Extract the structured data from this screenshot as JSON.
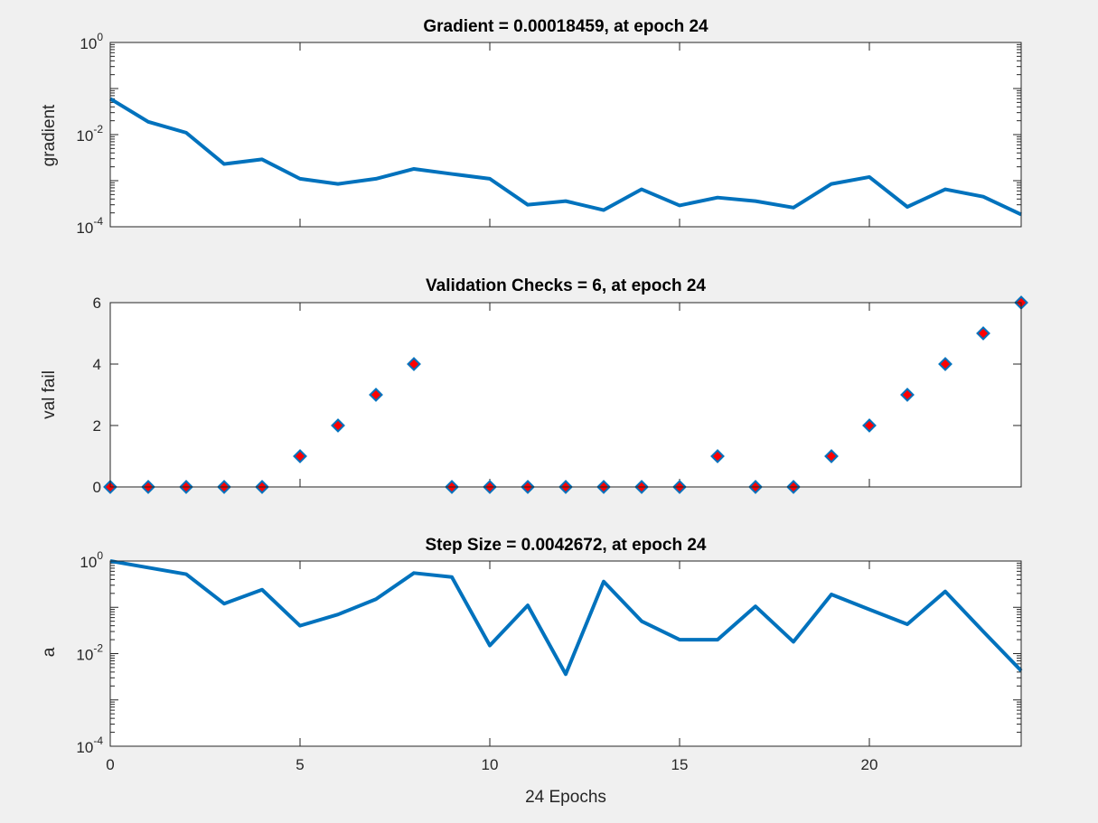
{
  "chart_data": [
    {
      "type": "line",
      "title": "Gradient = 0.00018459, at epoch 24",
      "xlabel": "",
      "ylabel": "gradient",
      "xlim": [
        0,
        24
      ],
      "ylim": [
        0.0001,
        1
      ],
      "yscale": "log",
      "yticks": [
        {
          "base": "10",
          "exp": "0"
        },
        {
          "base": "10",
          "exp": "-2"
        },
        {
          "base": "10",
          "exp": "-4"
        }
      ],
      "line_color": "#0072bd",
      "x": [
        0,
        1,
        2,
        3,
        4,
        5,
        6,
        7,
        8,
        9,
        10,
        11,
        12,
        13,
        14,
        15,
        16,
        17,
        18,
        19,
        20,
        21,
        22,
        23,
        24
      ],
      "y": [
        0.06,
        0.019,
        0.011,
        0.0023,
        0.0029,
        0.0011,
        0.00085,
        0.0011,
        0.0018,
        0.0014,
        0.0011,
        0.0003,
        0.00036,
        0.00023,
        0.00065,
        0.00029,
        0.00043,
        0.00036,
        0.00026,
        0.00085,
        0.0012,
        0.00027,
        0.00065,
        0.00045,
        0.00018459
      ]
    },
    {
      "type": "scatter",
      "title": "Validation Checks = 6, at epoch 24",
      "xlabel": "",
      "ylabel": "val fail",
      "xlim": [
        0,
        24
      ],
      "ylim": [
        0,
        6
      ],
      "yticks": [
        "0",
        "2",
        "4",
        "6"
      ],
      "marker": "diamond",
      "marker_fill": "#ff0000",
      "marker_edge": "#0072bd",
      "x": [
        0,
        1,
        2,
        3,
        4,
        5,
        6,
        7,
        8,
        9,
        10,
        11,
        12,
        13,
        14,
        15,
        16,
        17,
        18,
        19,
        20,
        21,
        22,
        23,
        24
      ],
      "y": [
        0,
        0,
        0,
        0,
        0,
        1,
        2,
        3,
        4,
        0,
        0,
        0,
        0,
        0,
        0,
        0,
        1,
        0,
        0,
        1,
        2,
        3,
        4,
        5,
        6
      ]
    },
    {
      "type": "line",
      "title": "Step Size = 0.0042672, at epoch 24",
      "xlabel": "24 Epochs",
      "ylabel": "a",
      "xlim": [
        0,
        24
      ],
      "ylim": [
        0.0001,
        1
      ],
      "yscale": "log",
      "yticks": [
        {
          "base": "10",
          "exp": "0"
        },
        {
          "base": "10",
          "exp": "-2"
        },
        {
          "base": "10",
          "exp": "-4"
        }
      ],
      "xticks": [
        "0",
        "5",
        "10",
        "15",
        "20"
      ],
      "line_color": "#0072bd",
      "x": [
        0,
        1,
        2,
        3,
        4,
        5,
        6,
        7,
        8,
        9,
        10,
        11,
        12,
        13,
        14,
        15,
        16,
        17,
        18,
        19,
        20,
        21,
        22,
        23,
        24
      ],
      "y": [
        1.0,
        0.72,
        0.52,
        0.12,
        0.24,
        0.04,
        0.07,
        0.15,
        0.55,
        0.45,
        0.015,
        0.11,
        0.0036,
        0.36,
        0.05,
        0.02,
        0.02,
        0.105,
        0.018,
        0.19,
        0.09,
        0.043,
        0.22,
        0.03,
        0.0042672
      ]
    }
  ]
}
